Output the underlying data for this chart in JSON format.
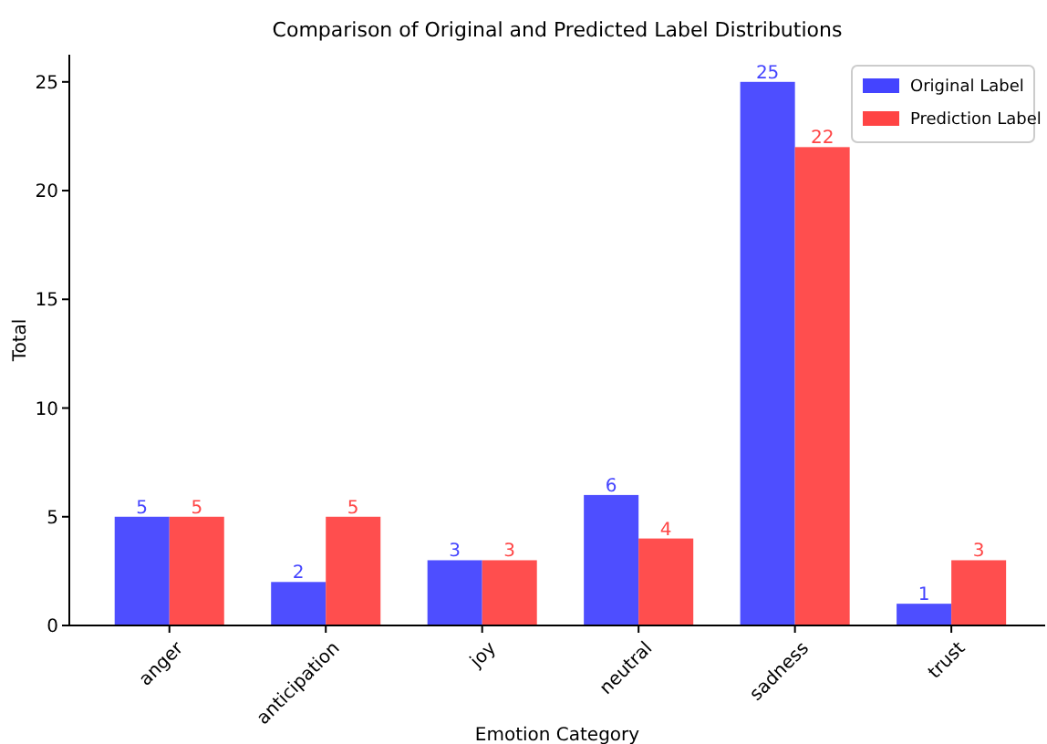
{
  "chart_data": {
    "type": "bar",
    "title": "Comparison of Original and Predicted Label Distributions",
    "xlabel": "Emotion Category",
    "ylabel": "Total",
    "categories": [
      "anger",
      "anticipation",
      "joy",
      "neutral",
      "sadness",
      "trust"
    ],
    "series": [
      {
        "name": "Original Label",
        "color": "#4444ff",
        "values": [
          5,
          2,
          3,
          6,
          25,
          1
        ]
      },
      {
        "name": "Prediction Label",
        "color": "#ff4444",
        "values": [
          5,
          5,
          3,
          4,
          22,
          3
        ]
      }
    ],
    "ylim": [
      0,
      26.25
    ],
    "yticks": [
      0,
      5,
      10,
      15,
      20,
      25
    ],
    "grid": false,
    "legend": "top right",
    "data_labels": true
  }
}
